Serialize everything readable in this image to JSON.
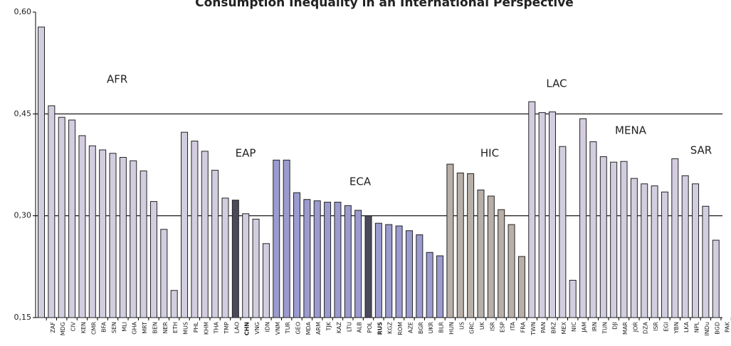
{
  "chart_data": {
    "type": "bar",
    "title": "Consumption Inequality in an International Perspective",
    "categories": [
      null,
      "ZAF",
      "MDG",
      "CIV",
      "KEN",
      "CMR",
      "BFA",
      "SEN",
      "MLI",
      "GHA",
      "MRT",
      "BEN",
      "NER",
      "ETH",
      "MUS",
      "PHL",
      "KHM",
      "THA",
      "TMP",
      "LAO",
      "CHN",
      "VNG",
      "IDN",
      "VNM",
      "TUR",
      "GEO",
      "MDA",
      "ARM",
      "TJK",
      "KAZ",
      "LTU",
      "ALB",
      "POL",
      "RUS",
      "KGZ",
      "ROM",
      "AZE",
      "BGR",
      "UKR",
      "BLR",
      "HUN",
      "US",
      "GRC",
      "UK",
      "ISR",
      "ESP",
      "ITA",
      "FRA",
      "TWN",
      "PAN",
      "BRZ",
      "MEX",
      "NIC",
      "JAM",
      "IRN",
      "TUN",
      "DJI",
      "MAR",
      "JOR",
      "DZA",
      "ISR",
      "EGI",
      "YBN",
      "LKA",
      "NPL",
      "INDu",
      "BGD",
      "PAK"
    ],
    "values": [
      0.578,
      0.462,
      0.445,
      0.441,
      0.418,
      0.403,
      0.397,
      0.392,
      0.386,
      0.381,
      0.366,
      0.321,
      0.28,
      0.19,
      0.423,
      0.41,
      0.395,
      0.367,
      0.326,
      0.323,
      0.303,
      0.295,
      0.259,
      0.382,
      0.382,
      0.334,
      0.324,
      0.322,
      0.32,
      0.32,
      0.315,
      0.308,
      0.3,
      0.289,
      0.287,
      0.285,
      0.278,
      0.272,
      0.246,
      0.241,
      0.376,
      0.363,
      0.362,
      0.338,
      0.329,
      0.309,
      0.287,
      0.24,
      0.468,
      0.452,
      0.453,
      0.402,
      0.205,
      0.443,
      0.409,
      0.387,
      0.379,
      0.38,
      0.355,
      0.347,
      0.344,
      0.335,
      0.384,
      0.359,
      0.347,
      0.314,
      0.264,
      null
    ],
    "colors": [
      "#d3cde0",
      "#d3cde0",
      "#d3cde0",
      "#d3cde0",
      "#d3cde0",
      "#d3cde0",
      "#d3cde0",
      "#d3cde0",
      "#d3cde0",
      "#d3cde0",
      "#d3cde0",
      "#d3cde0",
      "#d3cde0",
      "#d3cde0",
      "#d3cde0",
      "#d3cde0",
      "#d3cde0",
      "#d3cde0",
      "#d3cde0",
      "#4a4a5a",
      "#d3cde0",
      "#d3cde0",
      "#d3cde0",
      "#9b9bd0",
      "#9b9bd0",
      "#9b9bd0",
      "#9b9bd0",
      "#9b9bd0",
      "#9b9bd0",
      "#9b9bd0",
      "#9b9bd0",
      "#9b9bd0",
      "#4a4a5a",
      "#9b9bd0",
      "#9b9bd0",
      "#9b9bd0",
      "#9b9bd0",
      "#9b9bd0",
      "#9b9bd0",
      "#9b9bd0",
      "#b8b0a8",
      "#b8b0a8",
      "#b8b0a8",
      "#b8b0a8",
      "#b8b0a8",
      "#b8b0a8",
      "#b8b0a8",
      "#b8b0a8",
      "#d3cde0",
      "#d3cde0",
      "#d3cde0",
      "#d3cde0",
      "#d3cde0",
      "#d3cde0",
      "#d3cde0",
      "#d3cde0",
      "#d3cde0",
      "#d3cde0",
      "#d3cde0",
      "#d3cde0",
      "#d3cde0",
      "#d3cde0",
      "#d3cde0",
      "#d3cde0",
      "#d3cde0",
      "#d3cde0",
      "#d3cde0",
      "#d3cde0"
    ],
    "bold_categories": [
      "CHN",
      "RUS"
    ],
    "annotations": [
      "AFR",
      "EAP",
      "ECA",
      "HIC",
      "LAC",
      "MENA",
      "SAR"
    ],
    "ylim": [
      0.15,
      0.6
    ],
    "yticks": [
      {
        "value": 0.15,
        "label": "0,15"
      },
      {
        "value": 0.3,
        "label": "0,30"
      },
      {
        "value": 0.45,
        "label": "0,45"
      },
      {
        "value": 0.6,
        "label": "0,60"
      }
    ],
    "grid": true
  }
}
